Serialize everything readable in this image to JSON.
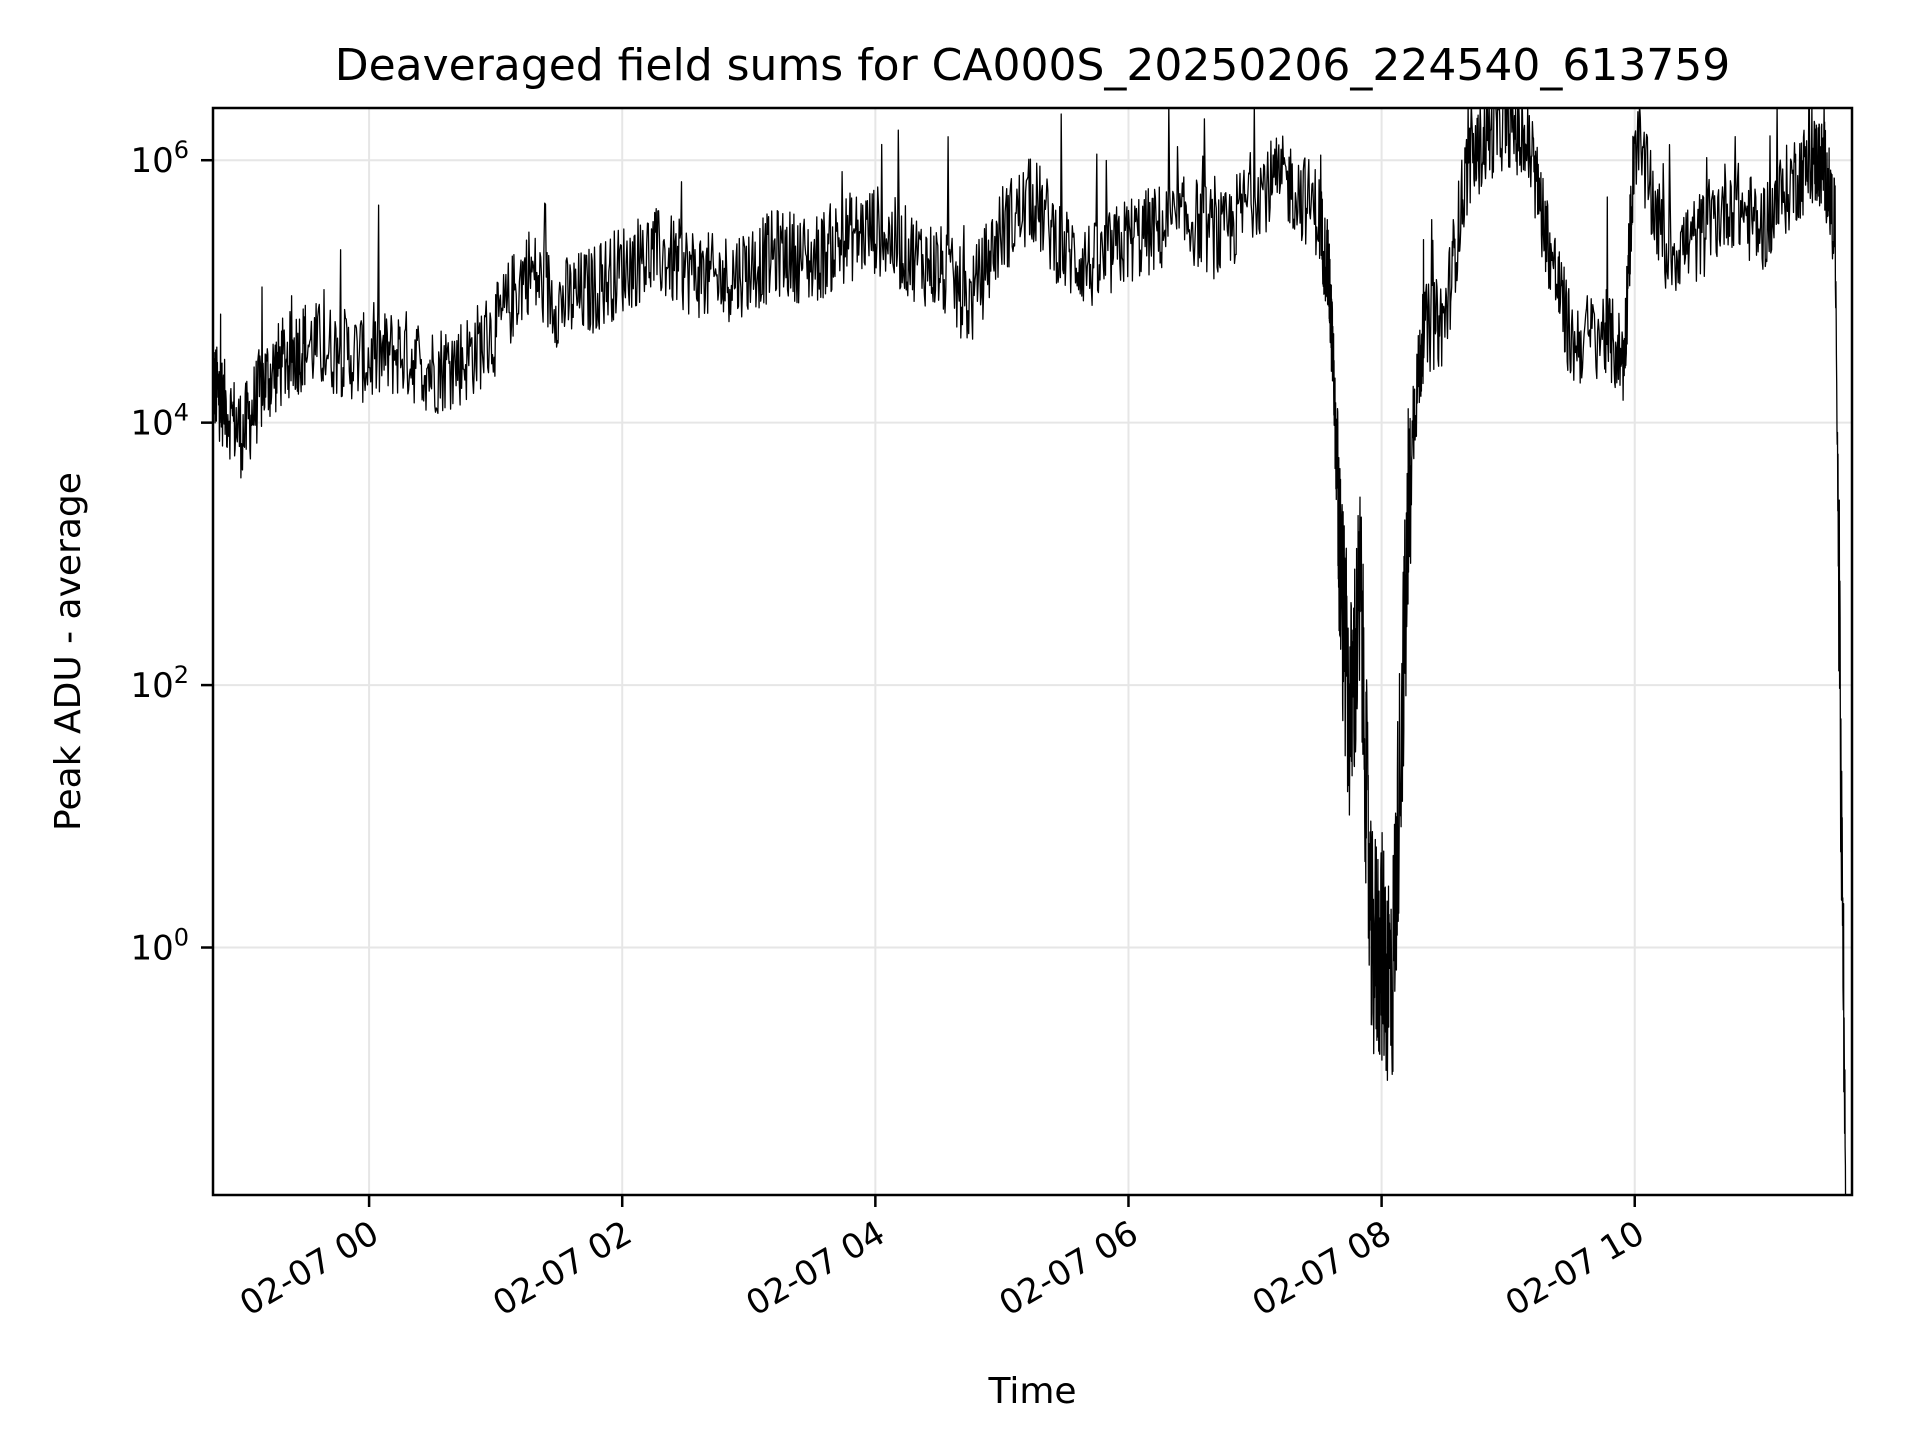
{
  "chart_data": {
    "type": "line",
    "title": "Deaveraged field sums for CA000S_20250206_224540_613759",
    "xlabel": "Time",
    "ylabel": "Peak ADU - average",
    "yscale": "log",
    "grid": true,
    "line_color": "#000000",
    "grid_color": "#e6e6e6",
    "xlim": [
      "2025-02-06T22:46:00",
      "2025-02-07T11:43:00"
    ],
    "ylim": [
      0.013,
      2500000
    ],
    "x_ticks": [
      {
        "value": "2025-02-07T00:00",
        "label": "02-07 00"
      },
      {
        "value": "2025-02-07T02:00",
        "label": "02-07 02"
      },
      {
        "value": "2025-02-07T04:00",
        "label": "02-07 04"
      },
      {
        "value": "2025-02-07T06:00",
        "label": "02-07 06"
      },
      {
        "value": "2025-02-07T08:00",
        "label": "02-07 08"
      },
      {
        "value": "2025-02-07T10:00",
        "label": "02-07 10"
      }
    ],
    "y_ticks": [
      {
        "value": 1,
        "base": "10",
        "exp": "0"
      },
      {
        "value": 100,
        "base": "10",
        "exp": "2"
      },
      {
        "value": 10000,
        "base": "10",
        "exp": "4"
      },
      {
        "value": 1000000,
        "base": "10",
        "exp": "6"
      }
    ],
    "series": [
      {
        "x": [
          "2025-02-06T22:46",
          "2025-02-06T22:50",
          "2025-02-06T23:00",
          "2025-02-06T23:10",
          "2025-02-06T23:20",
          "2025-02-06T23:30",
          "2025-02-06T23:45",
          "2025-02-07T00:00",
          "2025-02-07T00:15",
          "2025-02-07T00:30",
          "2025-02-07T00:45",
          "2025-02-07T01:00",
          "2025-02-07T01:15",
          "2025-02-07T01:30",
          "2025-02-07T01:45",
          "2025-02-07T02:00",
          "2025-02-07T02:15",
          "2025-02-07T02:30",
          "2025-02-07T02:45",
          "2025-02-07T03:00",
          "2025-02-07T03:15",
          "2025-02-07T03:30",
          "2025-02-07T03:45",
          "2025-02-07T04:00",
          "2025-02-07T04:15",
          "2025-02-07T04:30",
          "2025-02-07T04:45",
          "2025-02-07T05:00",
          "2025-02-07T05:15",
          "2025-02-07T05:30",
          "2025-02-07T05:45",
          "2025-02-07T06:00",
          "2025-02-07T06:15",
          "2025-02-07T06:30",
          "2025-02-07T06:45",
          "2025-02-07T07:00",
          "2025-02-07T07:15",
          "2025-02-07T07:30",
          "2025-02-07T07:35",
          "2025-02-07T07:37",
          "2025-02-07T07:40",
          "2025-02-07T07:45",
          "2025-02-07T07:50",
          "2025-02-07T07:55",
          "2025-02-07T08:00",
          "2025-02-07T08:05",
          "2025-02-07T08:10",
          "2025-02-07T08:15",
          "2025-02-07T08:20",
          "2025-02-07T08:30",
          "2025-02-07T08:40",
          "2025-02-07T08:50",
          "2025-02-07T09:00",
          "2025-02-07T09:10",
          "2025-02-07T09:20",
          "2025-02-07T09:30",
          "2025-02-07T09:45",
          "2025-02-07T09:55",
          "2025-02-07T10:00",
          "2025-02-07T10:15",
          "2025-02-07T10:30",
          "2025-02-07T10:45",
          "2025-02-07T11:00",
          "2025-02-07T11:15",
          "2025-02-07T11:25",
          "2025-02-07T11:30",
          "2025-02-07T11:35",
          "2025-02-07T11:40"
        ],
        "y": [
          20000,
          15000,
          8000,
          20000,
          30000,
          40000,
          35000,
          30000,
          35000,
          25000,
          30000,
          50000,
          150000,
          80000,
          100000,
          150000,
          200000,
          150000,
          120000,
          150000,
          200000,
          170000,
          250000,
          300000,
          200000,
          150000,
          80000,
          300000,
          500000,
          200000,
          150000,
          250000,
          300000,
          350000,
          250000,
          600000,
          700000,
          400000,
          120000,
          30000,
          1000,
          50,
          500,
          1,
          1,
          0.5,
          100,
          10000,
          50000,
          60000,
          800000,
          1500000,
          2000000,
          1200000,
          200000,
          40000,
          50000,
          30000,
          1500000,
          200000,
          250000,
          500000,
          300000,
          700000,
          1000000,
          900000,
          300000,
          0.014
        ]
      }
    ]
  }
}
